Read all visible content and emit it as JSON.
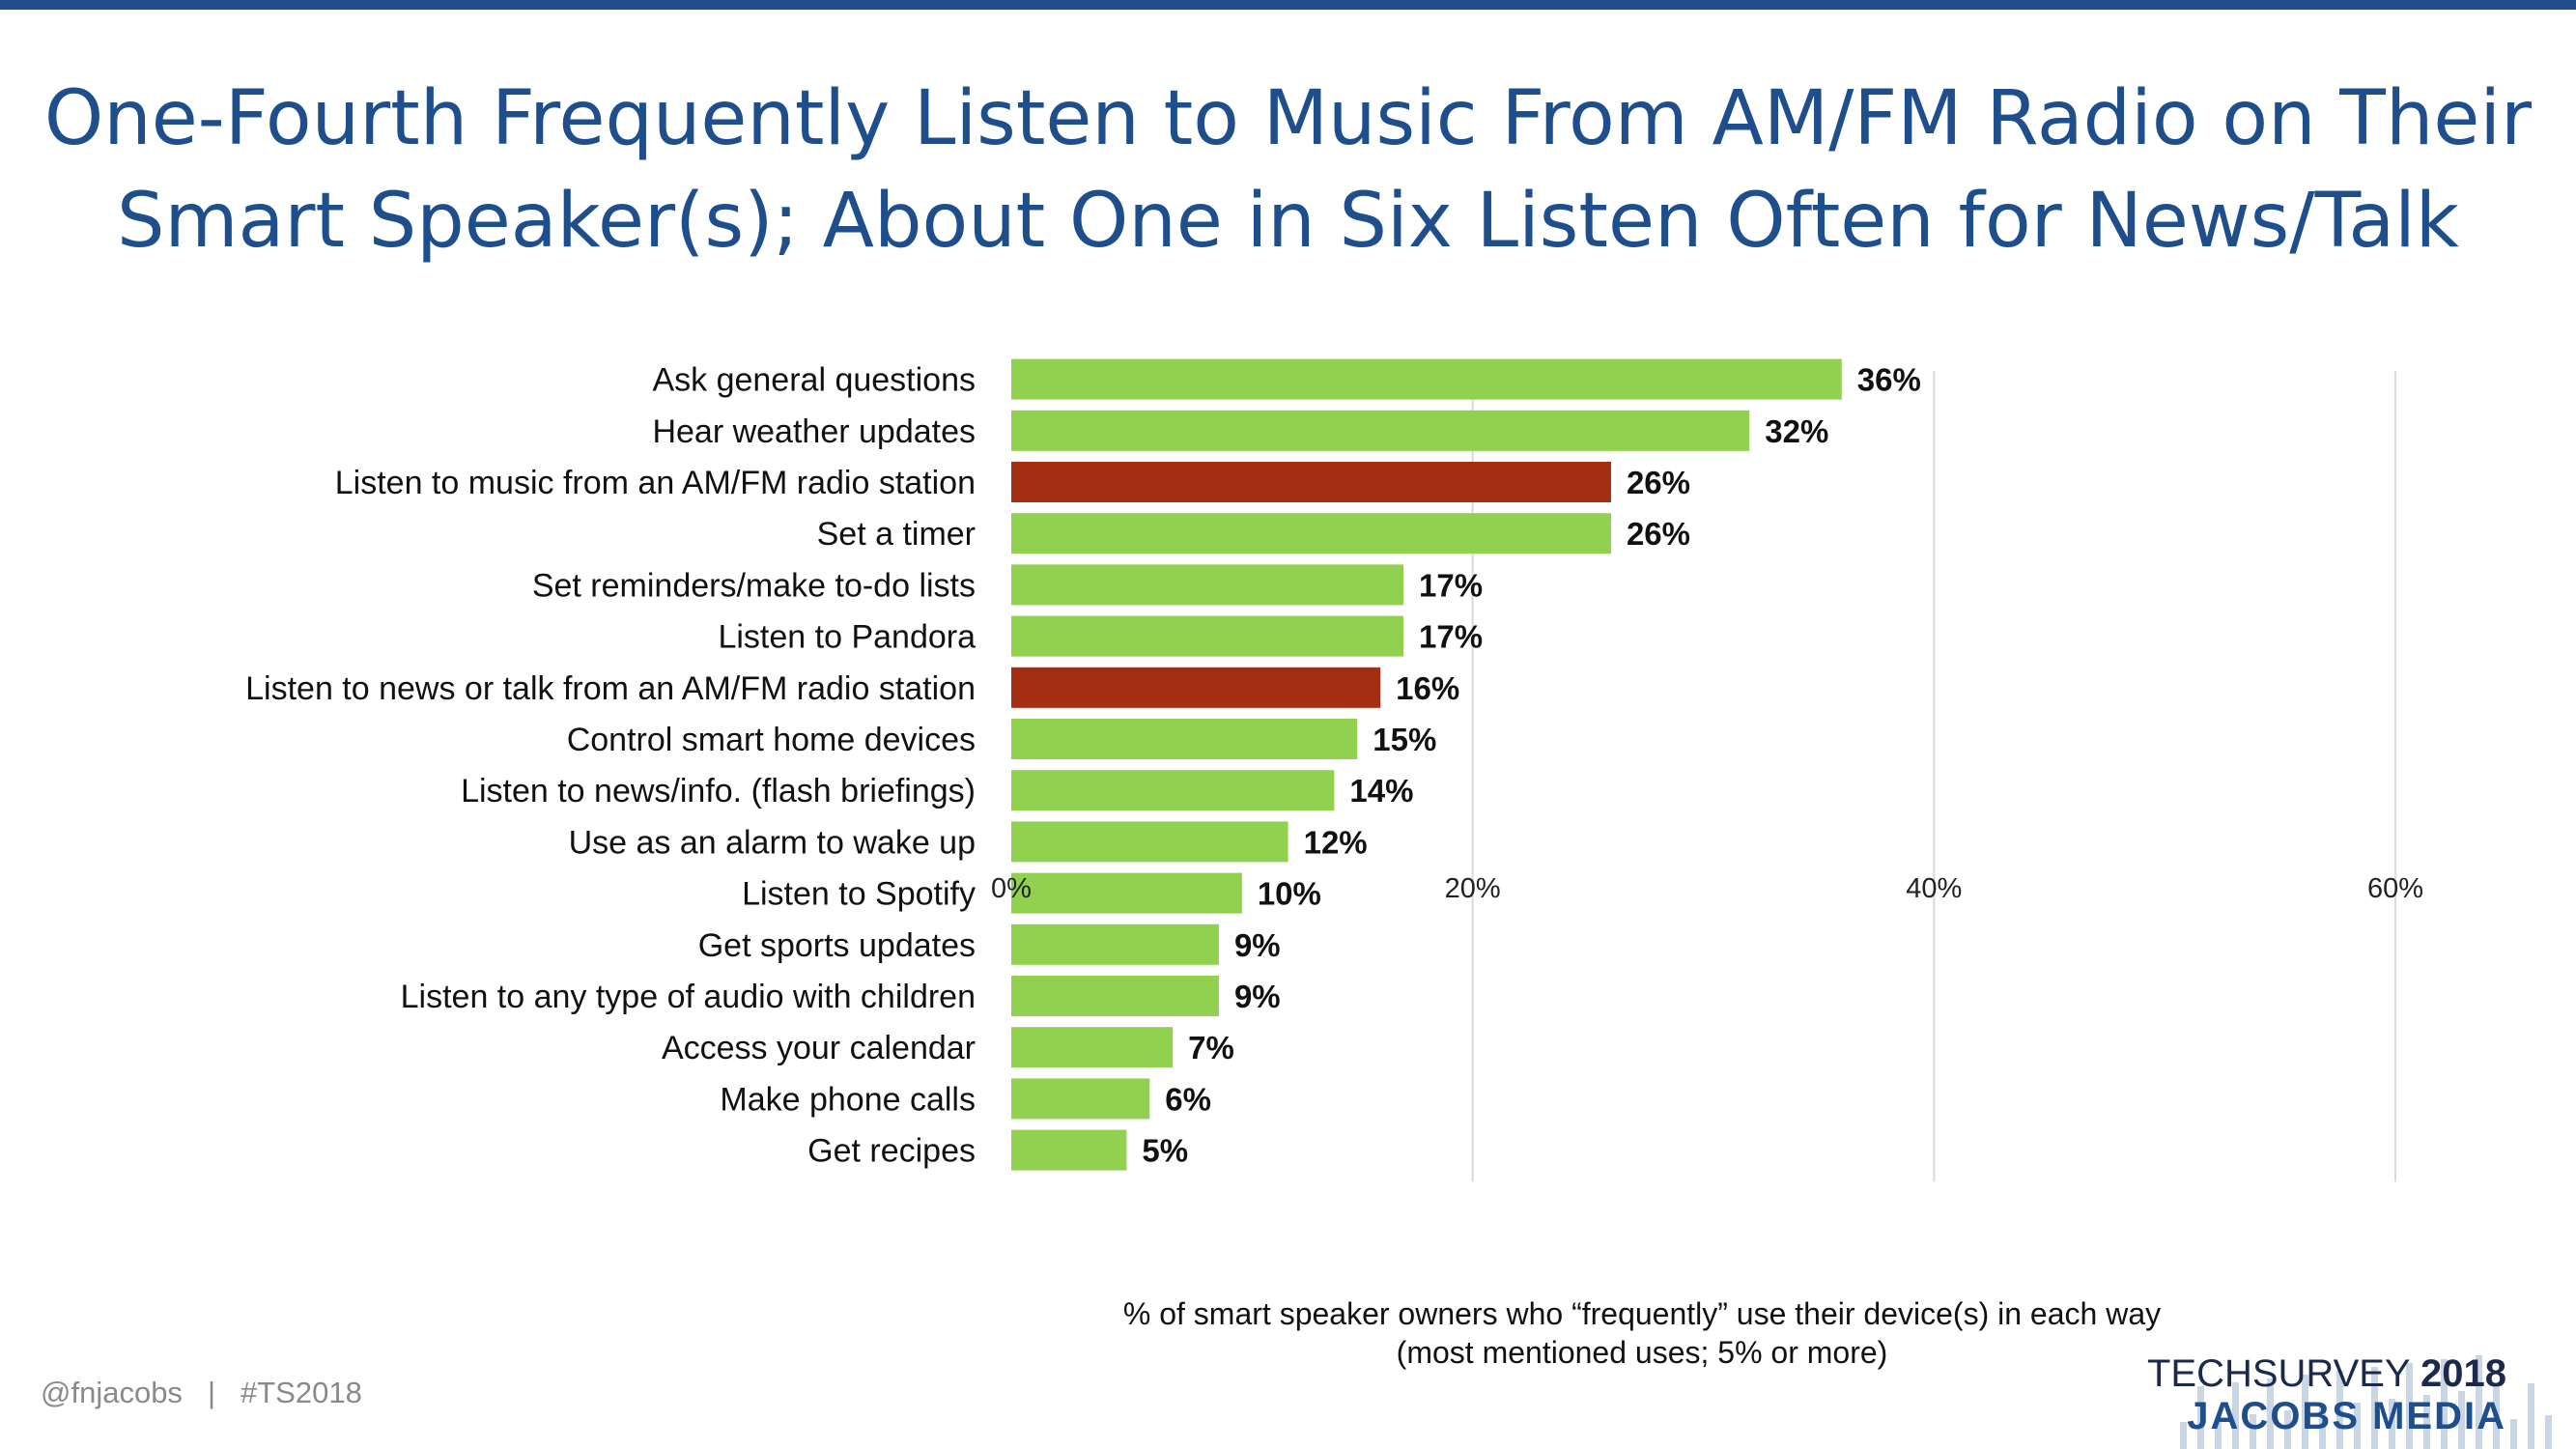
{
  "title": {
    "line1": "One-Fourth Frequently Listen to Music From AM/FM Radio on Their",
    "line2": "Smart Speaker(s); About One in Six Listen Often for News/Talk"
  },
  "chart_data": {
    "type": "bar",
    "orientation": "horizontal",
    "categories": [
      "Ask general questions",
      "Hear weather updates",
      "Listen to music from an AM/FM radio station",
      "Set a timer",
      "Set reminders/make to-do lists",
      "Listen to Pandora",
      "Listen to news or talk from an AM/FM radio station",
      "Control smart home devices",
      "Listen to news/info. (flash briefings)",
      "Use as an alarm to wake up",
      "Listen to Spotify",
      "Get sports updates",
      "Listen to any type of audio with children",
      "Access your calendar",
      "Make phone calls",
      "Get recipes"
    ],
    "values": [
      36,
      32,
      26,
      26,
      17,
      17,
      16,
      15,
      14,
      12,
      10,
      9,
      9,
      7,
      6,
      5
    ],
    "value_labels": [
      "36%",
      "32%",
      "26%",
      "26%",
      "17%",
      "17%",
      "16%",
      "15%",
      "14%",
      "12%",
      "10%",
      "9%",
      "9%",
      "7%",
      "6%",
      "5%"
    ],
    "highlighted": [
      false,
      false,
      true,
      false,
      false,
      false,
      true,
      false,
      false,
      false,
      false,
      false,
      false,
      false,
      false,
      false
    ],
    "xlim": [
      0,
      60
    ],
    "xticks": [
      0,
      20,
      40,
      60
    ],
    "xtick_labels": [
      "0%",
      "20%",
      "40%",
      "60%"
    ],
    "grid": "vertical",
    "colors": {
      "default": "#92d050",
      "highlight": "#a32e12",
      "grid": "#d9d9d9"
    }
  },
  "caption": {
    "line1": "% of smart speaker owners who “frequently” use their device(s) in each way",
    "line2": "(most mentioned uses; 5% or more)"
  },
  "footer": {
    "handle": "@fnjacobs",
    "separator": "|",
    "hashtag": "#TS2018"
  },
  "logo": {
    "line1_a": "TECHSURVEY",
    "line1_b": "2018",
    "line2": "JACOBS MEDIA"
  }
}
